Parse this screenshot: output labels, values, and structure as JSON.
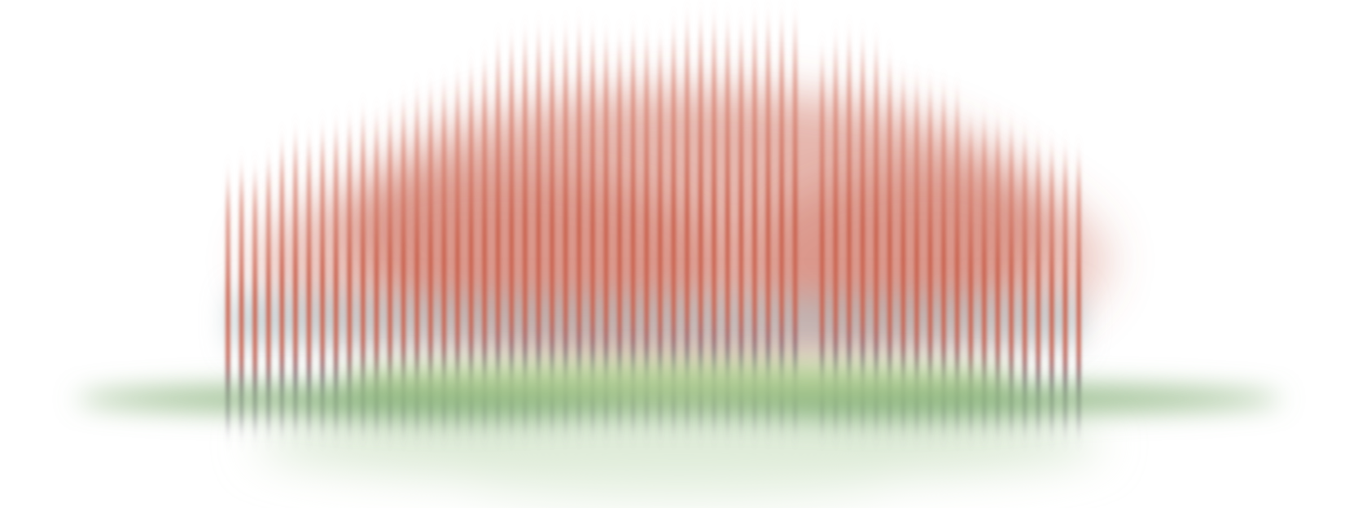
{
  "scene": {
    "colors": {
      "background": "#ffffff",
      "bars_red": "#c8604c",
      "bars_red_light": "#d98a7a",
      "bars_lower_bluegray": "#a9bcc2",
      "bars_lower_purple": "#7c6f86",
      "ground_green": "#87b27a",
      "ground_green_light": "#b3cf92",
      "mist_green": "#d7e7cf"
    },
    "bars": {
      "count": 64,
      "gap_index": 43,
      "heights": [
        0.62,
        0.64,
        0.63,
        0.66,
        0.7,
        0.72,
        0.71,
        0.73,
        0.74,
        0.75,
        0.77,
        0.76,
        0.78,
        0.8,
        0.82,
        0.83,
        0.84,
        0.86,
        0.88,
        0.9,
        0.94,
        0.95,
        0.96,
        0.97,
        0.96,
        0.97,
        0.98,
        0.97,
        0.96,
        0.95,
        0.97,
        0.96,
        0.95,
        0.98,
        1.0,
        1.0,
        1.0,
        0.99,
        0.98,
        1.0,
        1.0,
        1.0,
        1.0,
        0.99,
        0.92,
        0.95,
        0.96,
        0.95,
        0.94,
        0.9,
        0.86,
        0.85,
        0.84,
        0.83,
        0.82,
        0.75,
        0.76,
        0.75,
        0.74,
        0.72,
        0.7,
        0.69,
        0.68,
        0.67
      ]
    }
  }
}
